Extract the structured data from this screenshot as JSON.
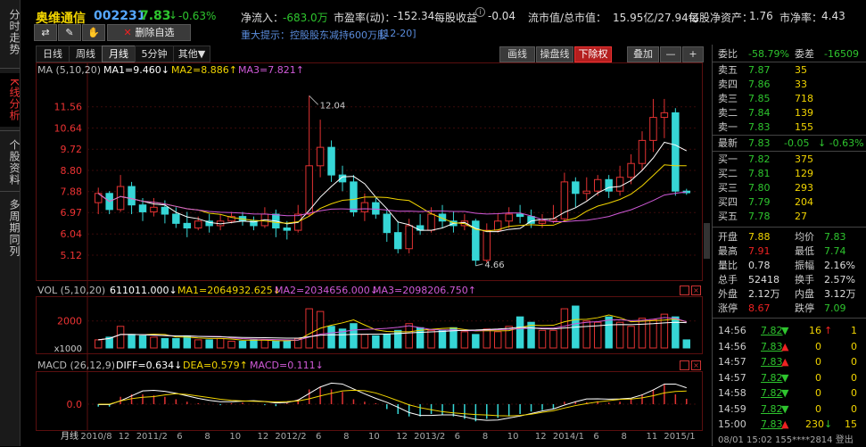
{
  "leftnav": {
    "items": [
      {
        "label": "分时走势",
        "active": false
      },
      {
        "label": "K线分析",
        "active": true
      },
      {
        "label": "个股资料",
        "active": false
      },
      {
        "label": "多周期同列",
        "active": false
      }
    ]
  },
  "header": {
    "stock_name": "奥维通信",
    "stock_code": "002231",
    "price": "7.83",
    "change": "-0.63%",
    "net_inflow_label": "净流入：",
    "net_inflow_value": "-683.0万",
    "pe_label": "市盈率(动)：",
    "pe_value": "-152.34",
    "eps_label": "每股收益",
    "eps_value": "-0.04",
    "mcap_label": "流市值/总市值：",
    "mcap_value": "15.95亿/27.94亿",
    "navps_label": "每股净资产：",
    "navps_value": "1.76",
    "pb_label": "市净率：",
    "pb_value": "4.43",
    "notice": "重大提示：控股股东减持600万股",
    "notice_date": "[12-20]",
    "toolbar": {
      "swap_icon": "swap-icon",
      "edit_icon": "pencil-icon",
      "erase_icon": "eraser-icon",
      "delete_label": "删除自选"
    }
  },
  "period_tabs": [
    {
      "label": "日线",
      "active": false
    },
    {
      "label": "周线",
      "active": false
    },
    {
      "label": "月线",
      "active": true
    },
    {
      "label": "5分钟",
      "active": false
    },
    {
      "label": "其他▼",
      "active": false
    }
  ],
  "right_buttons": [
    {
      "label": "画线",
      "active": false
    },
    {
      "label": "操盘线",
      "active": false
    },
    {
      "label": "下除权",
      "active": true
    },
    {
      "label": "叠加",
      "active": false
    },
    {
      "label": "—",
      "active": false
    },
    {
      "label": "+",
      "active": false
    }
  ],
  "ma_legend": {
    "title": "MA (5,10,20)",
    "ma1": "MA1=9.460↓",
    "ma2": "MA2=8.886↑",
    "ma3": "MA3=7.821↑"
  },
  "vol_legend": {
    "title": "VOL (5,10,20)",
    "vol": "611011.000↓",
    "ma1": "MA1=2064932.625↓",
    "ma2": "MA2=2034656.000↓",
    "ma3": "MA3=2098206.750↑"
  },
  "macd_legend": {
    "title": "MACD (26,12,9)",
    "diff": "DIFF=0.634↓",
    "dea": "DEA=0.579↑",
    "macd": "MACD=0.111↓"
  },
  "chart_data": {
    "type": "candlestick",
    "period": "月线",
    "price_ticks": [
      "11.56",
      "10.64",
      "9.72",
      "8.80",
      "7.88",
      "6.97",
      "6.04",
      "5.12"
    ],
    "price_annotations": {
      "high": "12.04",
      "low": "4.66"
    },
    "vol_ticks": [
      "2000",
      "x1000"
    ],
    "macd_ticks": [
      "0.0"
    ],
    "x_labels": [
      "月线",
      "2010/8",
      "12",
      "2011/2",
      "6",
      "8",
      "10",
      "12",
      "2012/2",
      "6",
      "8",
      "10",
      "12",
      "2013/2",
      "6",
      "8",
      "10",
      "12",
      "2014/1",
      "6",
      "8",
      "11",
      "2015/1"
    ],
    "ylim": [
      4.5,
      12.4
    ],
    "candles": [
      [
        7.4,
        7.8,
        8.05,
        6.9
      ],
      [
        7.8,
        7.1,
        7.9,
        6.9
      ],
      [
        7.1,
        8.1,
        8.6,
        7.0
      ],
      [
        8.1,
        7.3,
        8.3,
        6.9
      ],
      [
        7.3,
        7.0,
        7.6,
        6.6
      ],
      [
        7.0,
        7.2,
        7.6,
        6.8
      ],
      [
        7.2,
        6.9,
        7.5,
        6.5
      ],
      [
        6.9,
        6.5,
        7.2,
        6.3
      ],
      [
        6.5,
        6.3,
        7.0,
        5.9
      ],
      [
        6.3,
        6.6,
        6.8,
        6.2
      ],
      [
        6.6,
        6.4,
        6.9,
        6.1
      ],
      [
        6.4,
        6.6,
        6.9,
        6.2
      ],
      [
        6.6,
        6.8,
        7.0,
        6.5
      ],
      [
        6.8,
        6.6,
        7.0,
        6.4
      ],
      [
        6.6,
        6.4,
        6.8,
        6.2
      ],
      [
        6.4,
        6.9,
        7.2,
        6.3
      ],
      [
        6.9,
        6.3,
        7.1,
        5.9
      ],
      [
        6.3,
        6.2,
        6.6,
        5.8
      ],
      [
        6.2,
        6.9,
        7.3,
        6.1
      ],
      [
        6.9,
        9.0,
        12.04,
        6.8
      ],
      [
        9.0,
        9.8,
        11.0,
        8.5
      ],
      [
        9.8,
        8.6,
        10.1,
        8.3
      ],
      [
        8.6,
        8.3,
        9.0,
        7.9
      ],
      [
        8.3,
        7.0,
        8.6,
        6.8
      ],
      [
        7.0,
        7.4,
        7.8,
        6.6
      ],
      [
        7.4,
        6.9,
        7.6,
        6.7
      ],
      [
        6.9,
        6.1,
        7.1,
        5.7
      ],
      [
        6.1,
        5.4,
        6.6,
        5.2
      ],
      [
        5.4,
        6.4,
        6.7,
        5.2
      ],
      [
        6.4,
        6.2,
        6.9,
        6.0
      ],
      [
        6.2,
        6.9,
        7.2,
        6.1
      ],
      [
        6.9,
        6.6,
        7.3,
        6.3
      ],
      [
        6.6,
        6.4,
        7.0,
        6.1
      ],
      [
        6.4,
        6.6,
        6.9,
        6.2
      ],
      [
        6.6,
        4.9,
        6.7,
        4.66
      ],
      [
        4.9,
        6.2,
        6.5,
        4.8
      ],
      [
        6.2,
        6.6,
        6.9,
        6.1
      ],
      [
        6.6,
        6.9,
        7.2,
        6.3
      ],
      [
        6.9,
        6.8,
        7.3,
        6.5
      ],
      [
        6.8,
        6.5,
        7.1,
        6.3
      ],
      [
        6.5,
        6.6,
        6.9,
        6.3
      ],
      [
        6.6,
        6.7,
        7.3,
        6.5
      ],
      [
        6.7,
        8.3,
        8.7,
        6.6
      ],
      [
        8.3,
        7.8,
        8.5,
        7.2
      ],
      [
        7.8,
        7.9,
        8.5,
        7.5
      ],
      [
        7.9,
        8.4,
        8.6,
        7.7
      ],
      [
        8.4,
        7.9,
        8.6,
        7.6
      ],
      [
        7.9,
        8.5,
        9.0,
        7.7
      ],
      [
        8.5,
        9.1,
        9.5,
        8.2
      ],
      [
        9.1,
        10.1,
        10.5,
        8.8
      ],
      [
        10.1,
        11.1,
        11.9,
        9.6
      ],
      [
        11.1,
        11.3,
        11.9,
        10.2
      ],
      [
        11.3,
        7.9,
        11.5,
        7.7
      ],
      [
        7.9,
        7.83,
        8.0,
        7.74
      ]
    ],
    "volumes": [
      0.6,
      0.8,
      1.6,
      1.0,
      0.9,
      0.8,
      0.7,
      0.7,
      0.9,
      0.6,
      0.6,
      0.7,
      0.5,
      0.5,
      0.6,
      0.6,
      0.5,
      0.5,
      0.7,
      2.9,
      2.7,
      1.6,
      1.4,
      1.8,
      1.0,
      0.9,
      1.0,
      1.3,
      1.8,
      1.5,
      1.3,
      1.3,
      1.5,
      1.2,
      1.0,
      1.4,
      1.2,
      1.6,
      2.3,
      1.9,
      1.3,
      1.3,
      2.9,
      3.1,
      2.0,
      1.9,
      2.3,
      1.9,
      1.6,
      2.2,
      2.1,
      2.5,
      2.3,
      0.6
    ],
    "macd": [
      -0.05,
      -0.05,
      0.15,
      0.2,
      0.2,
      0.18,
      0.15,
      0.1,
      0.05,
      0.02,
      0.0,
      -0.02,
      0.02,
      0.03,
      0.0,
      -0.02,
      -0.04,
      0.02,
      0.1,
      0.3,
      0.35,
      0.3,
      0.25,
      0.1,
      0.05,
      0.02,
      -0.1,
      -0.2,
      -0.25,
      -0.25,
      -0.2,
      -0.22,
      -0.25,
      -0.3,
      -0.35,
      -0.3,
      -0.28,
      -0.25,
      -0.2,
      -0.15,
      -0.12,
      -0.1,
      0.05,
      0.05,
      0.04,
      0.06,
      0.03,
      0.05,
      0.1,
      0.2,
      0.3,
      0.4,
      0.2,
      0.11
    ]
  },
  "quote": {
    "weibi_label": "委比",
    "weibi_value": "-58.79%",
    "weicha_label": "委差",
    "weicha_value": "-16509",
    "asks": [
      {
        "label": "卖五",
        "price": "7.87",
        "vol": "35"
      },
      {
        "label": "卖四",
        "price": "7.86",
        "vol": "33"
      },
      {
        "label": "卖三",
        "price": "7.85",
        "vol": "718"
      },
      {
        "label": "卖二",
        "price": "7.84",
        "vol": "139"
      },
      {
        "label": "卖一",
        "price": "7.83",
        "vol": "155"
      }
    ],
    "latest_label": "最新",
    "latest_price": "7.83",
    "latest_change": "-0.05",
    "latest_pct": "↓ -0.63%",
    "bids": [
      {
        "label": "买一",
        "price": "7.82",
        "vol": "375"
      },
      {
        "label": "买二",
        "price": "7.81",
        "vol": "129"
      },
      {
        "label": "买三",
        "price": "7.80",
        "vol": "293"
      },
      {
        "label": "买四",
        "price": "7.79",
        "vol": "204"
      },
      {
        "label": "买五",
        "price": "7.78",
        "vol": "27"
      }
    ],
    "stats": [
      {
        "l1": "开盘",
        "v1": "7.88",
        "c1": "#f2d500",
        "l2": "均价",
        "v2": "7.83",
        "c2": "#2ec52e"
      },
      {
        "l1": "最高",
        "v1": "7.91",
        "c1": "#e22",
        "l2": "最低",
        "v2": "7.74",
        "c2": "#2ec52e"
      },
      {
        "l1": "量比",
        "v1": "0.78",
        "c1": "#ddd",
        "l2": "振幅",
        "v2": "2.16%",
        "c2": "#ddd"
      },
      {
        "l1": "总手",
        "v1": "52418",
        "c1": "#ddd",
        "l2": "换手",
        "v2": "2.57%",
        "c2": "#ddd"
      },
      {
        "l1": "外盘",
        "v1": "2.12万",
        "c1": "#ddd",
        "l2": "内盘",
        "v2": "3.12万",
        "c2": "#ddd"
      },
      {
        "l1": "涨停",
        "v1": "8.67",
        "c1": "#e22",
        "l2": "跌停",
        "v2": "7.09",
        "c2": "#2ec52e"
      }
    ],
    "ticks": [
      {
        "time": "14:56",
        "price": "7.82",
        "arrow": "▼",
        "vol": "16",
        "dir": "↑",
        "n": "1"
      },
      {
        "time": "14:56",
        "price": "7.83",
        "arrow": "▲",
        "vol": "0",
        "dir": "",
        "n": "0"
      },
      {
        "time": "14:57",
        "price": "7.83",
        "arrow": "▲",
        "vol": "0",
        "dir": "",
        "n": "0"
      },
      {
        "time": "14:57",
        "price": "7.82",
        "arrow": "▼",
        "vol": "0",
        "dir": "",
        "n": "0"
      },
      {
        "time": "14:58",
        "price": "7.82",
        "arrow": "▼",
        "vol": "0",
        "dir": "",
        "n": "0"
      },
      {
        "time": "14:59",
        "price": "7.82",
        "arrow": "▼",
        "vol": "0",
        "dir": "",
        "n": "0"
      },
      {
        "time": "15:00",
        "price": "7.83",
        "arrow": "▲",
        "vol": "230",
        "dir": "↓",
        "n": "15"
      }
    ],
    "footer": "08/01 15:02   155****2814 登出"
  }
}
